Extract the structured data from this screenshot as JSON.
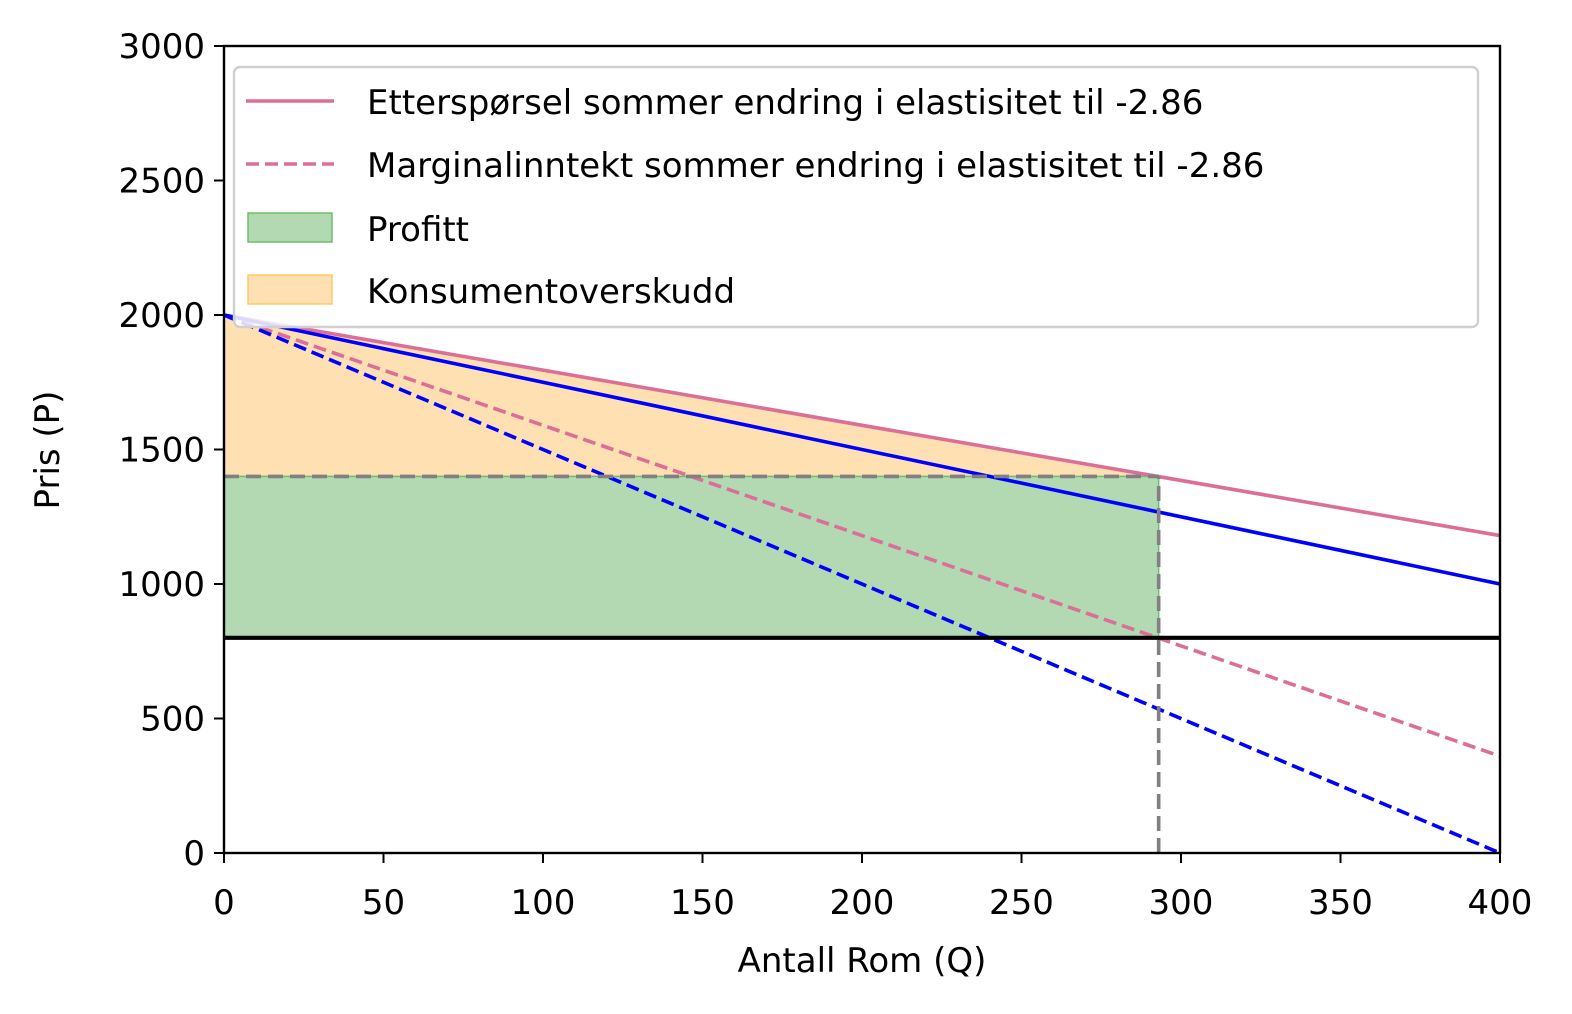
{
  "chart_data": {
    "type": "line",
    "title": "",
    "xlabel": "Antall Rom (Q)",
    "ylabel": "Pris (P)",
    "xlim": [
      0,
      400
    ],
    "ylim": [
      0,
      3000
    ],
    "xticks": [
      0,
      50,
      100,
      150,
      200,
      250,
      300,
      350,
      400
    ],
    "yticks": [
      0,
      500,
      1000,
      1500,
      2000,
      2500,
      3000
    ],
    "x_tick_labels": [
      "0",
      "50",
      "100",
      "150",
      "200",
      "250",
      "300",
      "350",
      "400"
    ],
    "y_tick_labels": [
      "0",
      "500",
      "1000",
      "1500",
      "2000",
      "2500",
      "3000"
    ],
    "grid": false,
    "legend_position": "top-right",
    "series": [
      {
        "name": "Etterspørsel sommer endring i elastisitet til -2.86",
        "style": "solid",
        "color": "#dc6f98",
        "x": [
          0,
          400
        ],
        "y": [
          2000,
          1180
        ]
      },
      {
        "name": "Marginalinntekt sommer endring i elastisitet til -2.86",
        "style": "dashed",
        "color": "#dc6f98",
        "x": [
          0,
          400
        ],
        "y": [
          2000,
          360
        ]
      },
      {
        "style": "solid",
        "color": "#0000ff",
        "x": [
          0,
          400
        ],
        "y": [
          2000,
          1000
        ]
      },
      {
        "style": "dashed",
        "color": "#0000ff",
        "x": [
          0,
          400
        ],
        "y": [
          2000,
          0
        ]
      },
      {
        "style": "solid",
        "color": "#000000",
        "x": [
          0,
          400
        ],
        "y": [
          800,
          800
        ]
      }
    ],
    "areas": [
      {
        "name": "Profitt",
        "color": "#b2d9b2",
        "edge": "#6cbf6c",
        "x": [
          0,
          293
        ],
        "y_low": 800,
        "y_high": 1400
      },
      {
        "name": "Konsumentoverskudd",
        "color": "#ffe0b2",
        "edge": "#ffc866",
        "polygon_x": [
          0,
          293,
          0
        ],
        "polygon_y": [
          2000,
          1400,
          1400
        ]
      }
    ],
    "guides": [
      {
        "style": "dashed",
        "color": "#808080",
        "x": [
          0,
          293
        ],
        "y": [
          1400,
          1400
        ]
      },
      {
        "style": "dashed",
        "color": "#808080",
        "x": [
          293,
          293
        ],
        "y": [
          0,
          1400
        ]
      }
    ]
  }
}
